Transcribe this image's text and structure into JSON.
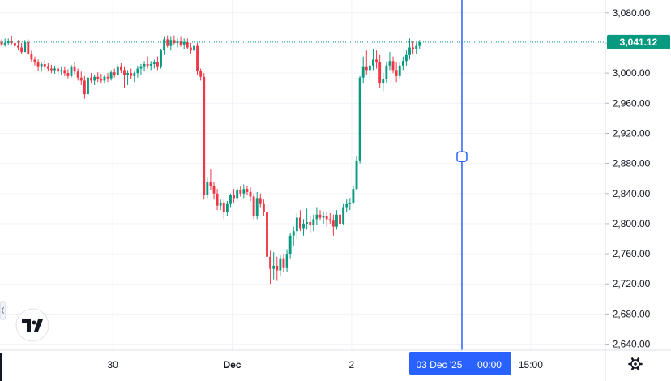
{
  "colors": {
    "up": "#089981",
    "down": "#f23645",
    "grid": "#f0f3fa",
    "crosshair": "#2962ff",
    "last_price_line": "#089981",
    "axis_text": "#131722"
  },
  "icons": {
    "logo": "tradingview-logo-icon",
    "settings": "gear-icon"
  },
  "chart_data": {
    "type": "candlestick",
    "y_axis": {
      "ticks": [
        "3,080.00",
        "3,040.00",
        "3,000.00",
        "2,960.00",
        "2,920.00",
        "2,880.00",
        "2,840.00",
        "2,800.00",
        "2,760.00",
        "2,720.00",
        "2,680.00",
        "2,640.00"
      ],
      "tick_values": [
        3080,
        3040,
        3000,
        2960,
        2920,
        2880,
        2840,
        2800,
        2760,
        2720,
        2680,
        2640
      ],
      "range": [
        2632,
        3097
      ]
    },
    "x_axis": {
      "labels": [
        {
          "text": "30",
          "bold": false,
          "i": 34.5
        },
        {
          "text": "Dec",
          "bold": true,
          "i": 70.5
        },
        {
          "text": "2",
          "bold": false,
          "i": 106.5
        },
        {
          "text": "15:00",
          "bold": false,
          "i": 160.5
        }
      ],
      "range": [
        0.5,
        183
      ]
    },
    "last_price": {
      "value": 3041.12,
      "label": "3,041.12"
    },
    "crosshair": {
      "i": 139.75,
      "date_label": "03 Dec '25",
      "time_label": "00:00",
      "marker_price": 2889
    },
    "candles": [
      [
        3041,
        3045,
        3036,
        3038
      ],
      [
        3038,
        3046,
        3035,
        3040
      ],
      [
        3040,
        3046,
        3037,
        3042
      ],
      [
        3042,
        3049,
        3038,
        3040
      ],
      [
        3040,
        3043,
        3032,
        3036
      ],
      [
        3036,
        3044,
        3030,
        3034
      ],
      [
        3034,
        3040,
        3026,
        3028
      ],
      [
        3028,
        3044,
        3028,
        3041
      ],
      [
        3041,
        3045,
        3024,
        3026
      ],
      [
        3026,
        3030,
        3015,
        3018
      ],
      [
        3018,
        3022,
        3010,
        3014
      ],
      [
        3014,
        3018,
        3003,
        3008
      ],
      [
        3008,
        3014,
        3002,
        3012
      ],
      [
        3012,
        3017,
        3005,
        3008
      ],
      [
        3008,
        3013,
        3002,
        3006
      ],
      [
        3006,
        3011,
        3000,
        3004
      ],
      [
        3004,
        3009,
        2999,
        3006
      ],
      [
        3006,
        3010,
        2998,
        3002
      ],
      [
        3002,
        3008,
        2997,
        3004
      ],
      [
        3004,
        3008,
        2996,
        3000
      ],
      [
        3000,
        3005,
        2993,
        2996
      ],
      [
        2996,
        3011,
        2994,
        3008
      ],
      [
        3008,
        3015,
        2998,
        3002
      ],
      [
        3002,
        3006,
        2990,
        2994
      ],
      [
        2994,
        3002,
        2984,
        2990
      ],
      [
        2990,
        2996,
        2966,
        2972
      ],
      [
        2972,
        2998,
        2968,
        2994
      ],
      [
        2994,
        3000,
        2986,
        2990
      ],
      [
        2990,
        2998,
        2984,
        2995
      ],
      [
        2995,
        3001,
        2988,
        2992
      ],
      [
        2992,
        2999,
        2986,
        2990
      ],
      [
        2990,
        2998,
        2986,
        2995
      ],
      [
        2995,
        3000,
        2988,
        2993
      ],
      [
        2993,
        3004,
        2990,
        3001
      ],
      [
        3001,
        3006,
        2994,
        2998
      ],
      [
        2998,
        3012,
        2996,
        3008
      ],
      [
        3008,
        3013,
        3000,
        3004
      ],
      [
        3004,
        3008,
        2980,
        2998
      ],
      [
        2998,
        3004,
        2984,
        3000
      ],
      [
        3000,
        3006,
        2992,
        2996
      ],
      [
        2996,
        3002,
        2988,
        3000
      ],
      [
        3000,
        3010,
        2994,
        3006
      ],
      [
        3006,
        3012,
        2998,
        3008
      ],
      [
        3008,
        3016,
        3002,
        3012
      ],
      [
        3012,
        3022,
        3006,
        3010
      ],
      [
        3010,
        3016,
        3004,
        3012
      ],
      [
        3012,
        3018,
        3006,
        3014
      ],
      [
        3014,
        3022,
        3004,
        3008
      ],
      [
        3008,
        3032,
        3006,
        3030
      ],
      [
        3030,
        3048,
        3024,
        3045
      ],
      [
        3045,
        3050,
        3034,
        3036
      ],
      [
        3036,
        3048,
        3030,
        3044
      ],
      [
        3044,
        3050,
        3038,
        3040
      ],
      [
        3040,
        3046,
        3034,
        3042
      ],
      [
        3042,
        3048,
        3035,
        3038
      ],
      [
        3038,
        3046,
        3032,
        3041
      ],
      [
        3041,
        3046,
        3032,
        3034
      ],
      [
        3034,
        3040,
        3026,
        3030
      ],
      [
        3030,
        3040,
        3026,
        3036
      ],
      [
        3036,
        3040,
        2998,
        3003
      ],
      [
        3003,
        3006,
        2990,
        2995
      ],
      [
        2995,
        3000,
        2832,
        2838
      ],
      [
        2838,
        2862,
        2834,
        2855
      ],
      [
        2855,
        2872,
        2844,
        2850
      ],
      [
        2850,
        2856,
        2832,
        2840
      ],
      [
        2840,
        2846,
        2818,
        2824
      ],
      [
        2824,
        2832,
        2818,
        2828
      ],
      [
        2828,
        2832,
        2806,
        2816
      ],
      [
        2816,
        2830,
        2810,
        2826
      ],
      [
        2826,
        2840,
        2822,
        2838
      ],
      [
        2838,
        2846,
        2828,
        2834
      ],
      [
        2834,
        2848,
        2830,
        2844
      ],
      [
        2844,
        2850,
        2836,
        2840
      ],
      [
        2840,
        2852,
        2834,
        2846
      ],
      [
        2846,
        2850,
        2838,
        2842
      ],
      [
        2842,
        2848,
        2830,
        2836
      ],
      [
        2836,
        2840,
        2806,
        2810
      ],
      [
        2810,
        2842,
        2806,
        2834
      ],
      [
        2834,
        2840,
        2822,
        2826
      ],
      [
        2826,
        2832,
        2810,
        2815
      ],
      [
        2815,
        2820,
        2750,
        2756
      ],
      [
        2756,
        2764,
        2720,
        2740
      ],
      [
        2740,
        2762,
        2726,
        2744
      ],
      [
        2744,
        2756,
        2724,
        2738
      ],
      [
        2738,
        2758,
        2730,
        2754
      ],
      [
        2754,
        2760,
        2736,
        2742
      ],
      [
        2742,
        2766,
        2736,
        2760
      ],
      [
        2760,
        2788,
        2754,
        2784
      ],
      [
        2784,
        2796,
        2770,
        2790
      ],
      [
        2790,
        2814,
        2780,
        2808
      ],
      [
        2808,
        2818,
        2790,
        2794
      ],
      [
        2794,
        2806,
        2784,
        2800
      ],
      [
        2800,
        2820,
        2792,
        2802
      ],
      [
        2802,
        2810,
        2788,
        2798
      ],
      [
        2798,
        2812,
        2790,
        2806
      ],
      [
        2806,
        2822,
        2798,
        2812
      ],
      [
        2812,
        2818,
        2804,
        2808
      ],
      [
        2808,
        2816,
        2800,
        2810
      ],
      [
        2810,
        2816,
        2796,
        2806
      ],
      [
        2806,
        2814,
        2800,
        2804
      ],
      [
        2804,
        2812,
        2784,
        2796
      ],
      [
        2796,
        2818,
        2792,
        2812
      ],
      [
        2812,
        2822,
        2796,
        2800
      ],
      [
        2800,
        2826,
        2798,
        2822
      ],
      [
        2822,
        2832,
        2816,
        2826
      ],
      [
        2826,
        2834,
        2818,
        2828
      ],
      [
        2828,
        2850,
        2826,
        2846
      ],
      [
        2846,
        2890,
        2844,
        2884
      ],
      [
        2884,
        2996,
        2880,
        2994
      ],
      [
        2994,
        3022,
        2986,
        3008
      ],
      [
        3008,
        3030,
        2998,
        3004
      ],
      [
        3004,
        3016,
        2990,
        3010
      ],
      [
        3010,
        3032,
        3004,
        3018
      ],
      [
        3018,
        3030,
        3006,
        3014
      ],
      [
        3014,
        3024,
        2980,
        2986
      ],
      [
        2986,
        3000,
        2976,
        2992
      ],
      [
        2992,
        3014,
        2986,
        3010
      ],
      [
        3010,
        3028,
        3004,
        3016
      ],
      [
        3016,
        3022,
        3000,
        3004
      ],
      [
        3004,
        3014,
        2988,
        2996
      ],
      [
        2996,
        3014,
        2992,
        3010
      ],
      [
        3010,
        3022,
        3004,
        3016
      ],
      [
        3016,
        3030,
        3010,
        3024
      ],
      [
        3024,
        3046,
        3018,
        3034
      ],
      [
        3034,
        3042,
        3026,
        3032
      ],
      [
        3032,
        3040,
        3026,
        3036
      ],
      [
        3036,
        3044,
        3032,
        3041
      ]
    ]
  }
}
